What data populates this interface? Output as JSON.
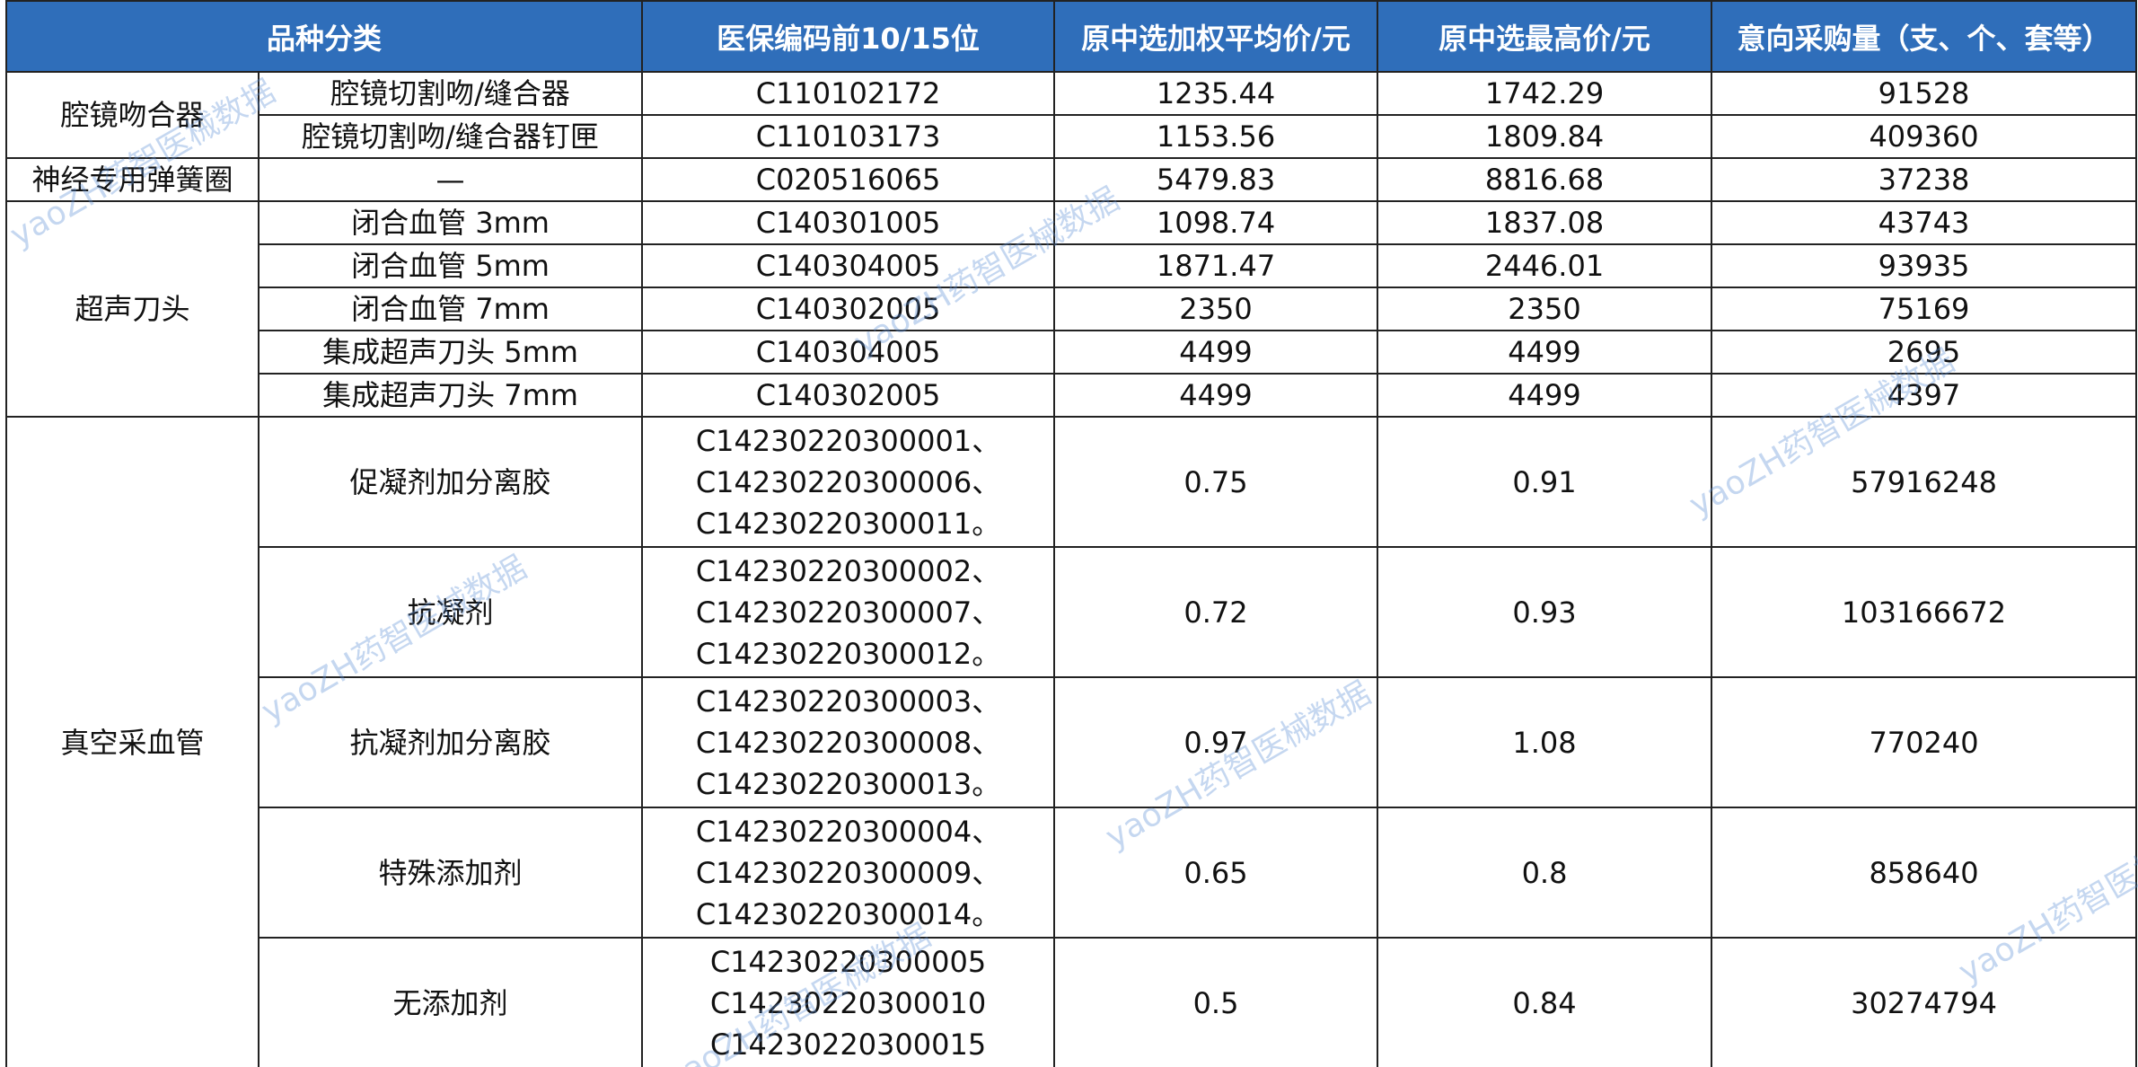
{
  "header": [
    "品种分类",
    "医保编码前10/15位",
    "原中选加权平均价/元",
    "原中选最高价/元",
    "意向采购量（支、个、套等）"
  ],
  "groups": [
    {
      "category": "腔镜吻合器",
      "items": [
        {
          "name": "腔镜切割吻/缝合器",
          "code": [
            "C110102172"
          ],
          "avg_price": 1235.44,
          "max_price": 1742.29,
          "quantity": 91528
        },
        {
          "name": "腔镜切割吻/缝合器钉匣",
          "code": [
            "C110103173"
          ],
          "avg_price": 1153.56,
          "max_price": 1809.84,
          "quantity": 409360
        }
      ]
    },
    {
      "category": "神经专用弹簧圈",
      "items": [
        {
          "name": "—",
          "code": [
            "C020516065"
          ],
          "avg_price": 5479.83,
          "max_price": 8816.68,
          "quantity": 37238
        }
      ]
    },
    {
      "category": "超声刀头",
      "items": [
        {
          "name": "闭合血管 3mm",
          "code": [
            "C140301005"
          ],
          "avg_price": 1098.74,
          "max_price": 1837.08,
          "quantity": 43743
        },
        {
          "name": "闭合血管 5mm",
          "code": [
            "C140304005"
          ],
          "avg_price": 1871.47,
          "max_price": 2446.01,
          "quantity": 93935
        },
        {
          "name": "闭合血管 7mm",
          "code": [
            "C140302005"
          ],
          "avg_price": 2350,
          "max_price": 2350,
          "quantity": 75169
        },
        {
          "name": "集成超声刀头 5mm",
          "code": [
            "C140304005"
          ],
          "avg_price": 4499,
          "max_price": 4499,
          "quantity": 2695
        },
        {
          "name": "集成超声刀头 7mm",
          "code": [
            "C140302005"
          ],
          "avg_price": 4499,
          "max_price": 4499,
          "quantity": 4397
        }
      ]
    },
    {
      "category": "真空采血管",
      "items": [
        {
          "name": "促凝剂加分离胶",
          "code": [
            "C14230220300001、",
            "C14230220300006、",
            "C14230220300011。"
          ],
          "avg_price": 0.75,
          "max_price": 0.91,
          "quantity": 57916248
        },
        {
          "name": "抗凝剂",
          "code": [
            "C14230220300002、",
            "C14230220300007、",
            "C14230220300012。"
          ],
          "avg_price": 0.72,
          "max_price": 0.93,
          "quantity": 103166672
        },
        {
          "name": "抗凝剂加分离胶",
          "code": [
            "C14230220300003、",
            "C14230220300008、",
            "C14230220300013。"
          ],
          "avg_price": 0.97,
          "max_price": 1.08,
          "quantity": 770240
        },
        {
          "name": "特殊添加剂",
          "code": [
            "C14230220300004、",
            "C14230220300009、",
            "C14230220300014。"
          ],
          "avg_price": 0.65,
          "max_price": 0.8,
          "quantity": 858640
        },
        {
          "name": "无添加剂",
          "code": [
            "C14230220300005",
            "C14230220300010",
            "C14230220300015"
          ],
          "avg_price": 0.5,
          "max_price": 0.84,
          "quantity": 30274794
        }
      ]
    }
  ],
  "watermark": "yaoZH药智医械数据"
}
